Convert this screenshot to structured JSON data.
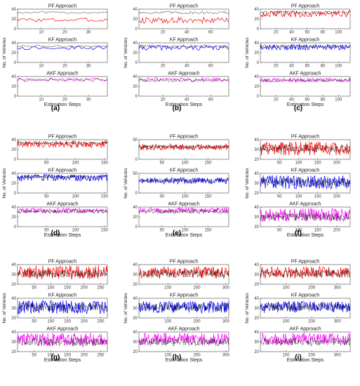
{
  "figure": {
    "xlabel": "Estimation Steps",
    "ylabel": "No. of Vehicles",
    "subplot_titles": [
      "PF Approach",
      "KF Approach",
      "AKF Approach"
    ],
    "panel_labels": [
      "(a)",
      "(b)",
      "(c)",
      "(d)",
      "(e)",
      "(f)",
      "(g)",
      "(h)",
      "(i)"
    ]
  },
  "colors": {
    "PF": "#ff0000",
    "KF": "#0000ff",
    "AKF": "#ff00ff",
    "actual": "#000000"
  },
  "chart_data": [
    {
      "type": "line",
      "panel": "(a)",
      "xlim": [
        0,
        38
      ],
      "xticks": [
        10,
        20,
        30
      ],
      "subplots": [
        {
          "title": "PF Approach",
          "ylim": [
            0,
            40
          ],
          "yticks": [
            0,
            20,
            40
          ],
          "estimate_color": "#ff0000",
          "estimate_center": 18,
          "estimate_amp": 4,
          "actual_center": 33,
          "actual_amp": 2
        },
        {
          "title": "KF Approach",
          "ylim": [
            0,
            40
          ],
          "yticks": [
            0,
            20,
            40
          ],
          "estimate_color": "#0000ff",
          "estimate_center": 30,
          "estimate_amp": 4,
          "actual_center": 33,
          "actual_amp": 2
        },
        {
          "title": "AKF Approach",
          "ylim": [
            0,
            40
          ],
          "yticks": [
            0,
            20,
            40
          ],
          "estimate_color": "#ff00ff",
          "estimate_center": 34,
          "estimate_amp": 4,
          "actual_center": 33,
          "actual_amp": 3
        }
      ]
    },
    {
      "type": "line",
      "panel": "(b)",
      "xlim": [
        0,
        75
      ],
      "xticks": [
        20,
        40,
        60
      ],
      "subplots": [
        {
          "title": "PF Approach",
          "ylim": [
            0,
            40
          ],
          "yticks": [
            0,
            20,
            40
          ],
          "estimate_color": "#ff0000",
          "estimate_center": 17,
          "estimate_amp": 6,
          "actual_center": 33,
          "actual_amp": 3
        },
        {
          "title": "KF Approach",
          "ylim": [
            0,
            40
          ],
          "yticks": [
            0,
            20,
            40
          ],
          "estimate_color": "#0000ff",
          "estimate_center": 30,
          "estimate_amp": 5,
          "actual_center": 33,
          "actual_amp": 3
        },
        {
          "title": "AKF Approach",
          "ylim": [
            0,
            40
          ],
          "yticks": [
            0,
            20,
            40
          ],
          "estimate_color": "#ff00ff",
          "estimate_center": 34,
          "estimate_amp": 4,
          "actual_center": 32,
          "actual_amp": 3
        }
      ]
    },
    {
      "type": "line",
      "panel": "(c)",
      "xlim": [
        0,
        115
      ],
      "xticks": [
        20,
        40,
        60,
        80,
        100
      ],
      "subplots": [
        {
          "title": "PF Approach",
          "ylim": [
            0,
            40
          ],
          "yticks": [
            0,
            20,
            40
          ],
          "estimate_color": "#ff0000",
          "estimate_center": 30,
          "estimate_amp": 7,
          "actual_center": 33,
          "actual_amp": 3
        },
        {
          "title": "KF Approach",
          "ylim": [
            0,
            40
          ],
          "yticks": [
            0,
            20,
            40
          ],
          "estimate_color": "#0000ff",
          "estimate_center": 31,
          "estimate_amp": 6,
          "actual_center": 33,
          "actual_amp": 3
        },
        {
          "title": "AKF Approach",
          "ylim": [
            0,
            40
          ],
          "yticks": [
            0,
            20,
            40
          ],
          "estimate_color": "#ff00ff",
          "estimate_center": 33,
          "estimate_amp": 4,
          "actual_center": 32,
          "actual_amp": 3
        }
      ]
    },
    {
      "type": "line",
      "panel": "(d)",
      "xlim": [
        0,
        155
      ],
      "xticks": [
        50,
        100,
        150
      ],
      "subplots": [
        {
          "title": "PF Approach",
          "ylim": [
            0,
            40
          ],
          "yticks": [
            0,
            20,
            40
          ],
          "estimate_color": "#ff0000",
          "estimate_center": 31,
          "estimate_amp": 7,
          "actual_center": 33,
          "actual_amp": 3
        },
        {
          "title": "KF Approach",
          "ylim": [
            0,
            40
          ],
          "yticks": [
            0,
            20,
            40
          ],
          "estimate_color": "#0000ff",
          "estimate_center": 31,
          "estimate_amp": 7,
          "actual_center": 33,
          "actual_amp": 3
        },
        {
          "title": "AKF Approach",
          "ylim": [
            0,
            40
          ],
          "yticks": [
            0,
            20,
            40
          ],
          "estimate_color": "#ff00ff",
          "estimate_center": 33,
          "estimate_amp": 5,
          "actual_center": 31,
          "actual_amp": 4
        }
      ]
    },
    {
      "type": "line",
      "panel": "(e)",
      "xlim": [
        0,
        195
      ],
      "xticks": [
        50,
        100,
        150
      ],
      "subplots": [
        {
          "title": "PF Approach",
          "ylim": [
            0,
            50
          ],
          "yticks": [
            0,
            50
          ],
          "estimate_color": "#ff0000",
          "estimate_center": 31,
          "estimate_amp": 8,
          "actual_center": 32,
          "actual_amp": 4
        },
        {
          "title": "KF Approach",
          "ylim": [
            0,
            50
          ],
          "yticks": [
            0,
            50
          ],
          "estimate_color": "#0000ff",
          "estimate_center": 31,
          "estimate_amp": 8,
          "actual_center": 32,
          "actual_amp": 4
        },
        {
          "title": "AKF Approach",
          "ylim": [
            0,
            40
          ],
          "yticks": [
            0,
            20,
            40
          ],
          "estimate_color": "#ff00ff",
          "estimate_center": 34,
          "estimate_amp": 5,
          "actual_center": 31,
          "actual_amp": 4
        }
      ]
    },
    {
      "type": "line",
      "panel": "(f)",
      "xlim": [
        0,
        235
      ],
      "xticks": [
        50,
        100,
        150,
        200
      ],
      "subplots": [
        {
          "title": "PF Approach",
          "ylim": [
            20,
            40
          ],
          "yticks": [
            20,
            30,
            40
          ],
          "estimate_color": "#ff0000",
          "estimate_center": 31,
          "estimate_amp": 7,
          "actual_center": 31,
          "actual_amp": 4
        },
        {
          "title": "KF Approach",
          "ylim": [
            20,
            40
          ],
          "yticks": [
            20,
            30,
            40
          ],
          "estimate_color": "#0000ff",
          "estimate_center": 31,
          "estimate_amp": 7,
          "actual_center": 31,
          "actual_amp": 4
        },
        {
          "title": "AKF Approach",
          "ylim": [
            20,
            40
          ],
          "yticks": [
            20,
            30,
            40
          ],
          "estimate_color": "#ff00ff",
          "estimate_center": 32,
          "estimate_amp": 7,
          "actual_center": 30,
          "actual_amp": 4
        }
      ]
    },
    {
      "type": "line",
      "panel": "(g)",
      "xlim": [
        0,
        270
      ],
      "xticks": [
        50,
        100,
        150,
        200,
        250
      ],
      "subplots": [
        {
          "title": "PF Approach",
          "ylim": [
            20,
            40
          ],
          "yticks": [
            20,
            30,
            40
          ],
          "estimate_color": "#ff0000",
          "estimate_center": 32,
          "estimate_amp": 7,
          "actual_center": 31,
          "actual_amp": 4
        },
        {
          "title": "KF Approach",
          "ylim": [
            20,
            40
          ],
          "yticks": [
            20,
            30,
            40
          ],
          "estimate_color": "#0000ff",
          "estimate_center": 31,
          "estimate_amp": 7,
          "actual_center": 31,
          "actual_amp": 4
        },
        {
          "title": "AKF Approach",
          "ylim": [
            20,
            40
          ],
          "yticks": [
            20,
            30,
            40
          ],
          "estimate_color": "#ff00ff",
          "estimate_center": 32,
          "estimate_amp": 7,
          "actual_center": 30,
          "actual_amp": 4
        }
      ]
    },
    {
      "type": "line",
      "panel": "(h)",
      "xlim": [
        0,
        310
      ],
      "xticks": [
        100,
        200,
        300
      ],
      "subplots": [
        {
          "title": "PF Approach",
          "ylim": [
            20,
            40
          ],
          "yticks": [
            20,
            30,
            40
          ],
          "estimate_color": "#ff0000",
          "estimate_center": 32,
          "estimate_amp": 6,
          "actual_center": 31,
          "actual_amp": 4
        },
        {
          "title": "KF Approach",
          "ylim": [
            20,
            40
          ],
          "yticks": [
            20,
            30,
            40
          ],
          "estimate_color": "#0000ff",
          "estimate_center": 31,
          "estimate_amp": 6,
          "actual_center": 31,
          "actual_amp": 4
        },
        {
          "title": "AKF Approach",
          "ylim": [
            20,
            40
          ],
          "yticks": [
            20,
            30,
            40
          ],
          "estimate_color": "#ff00ff",
          "estimate_center": 33,
          "estimate_amp": 6,
          "actual_center": 30,
          "actual_amp": 4
        }
      ]
    },
    {
      "type": "line",
      "panel": "(i)",
      "xlim": [
        0,
        350
      ],
      "xticks": [
        100,
        200,
        300
      ],
      "subplots": [
        {
          "title": "PF Approach",
          "ylim": [
            20,
            40
          ],
          "yticks": [
            20,
            30,
            40
          ],
          "estimate_color": "#ff0000",
          "estimate_center": 32,
          "estimate_amp": 6,
          "actual_center": 31,
          "actual_amp": 4
        },
        {
          "title": "KF Approach",
          "ylim": [
            20,
            40
          ],
          "yticks": [
            20,
            30,
            40
          ],
          "estimate_color": "#0000ff",
          "estimate_center": 31,
          "estimate_amp": 6,
          "actual_center": 31,
          "actual_amp": 4
        },
        {
          "title": "AKF Approach",
          "ylim": [
            20,
            40
          ],
          "yticks": [
            20,
            30,
            40
          ],
          "estimate_color": "#ff00ff",
          "estimate_center": 33,
          "estimate_amp": 6,
          "actual_center": 30,
          "actual_amp": 4
        }
      ]
    }
  ]
}
